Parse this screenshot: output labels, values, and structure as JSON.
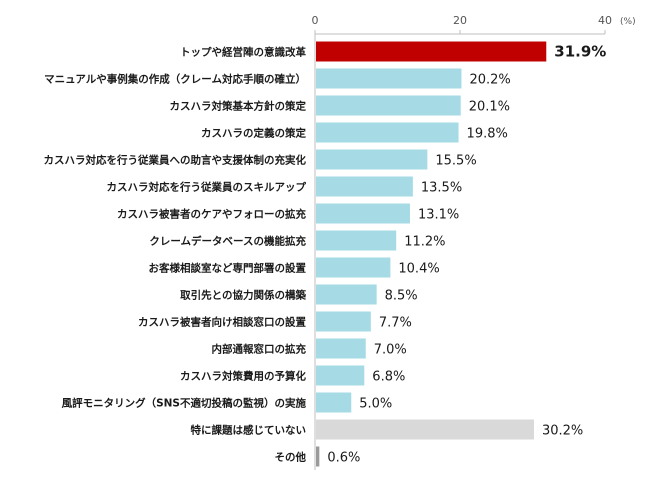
{
  "chart_data": {
    "type": "bar",
    "orientation": "horizontal",
    "title": "",
    "unit_label": "(%)",
    "xlim": [
      0,
      40
    ],
    "xticks": [
      "0",
      "20",
      "40"
    ],
    "grid": false,
    "categories": [
      "トップや経営陣の意識改革",
      "マニュアルや事例集の作成（クレーム対応手順の確立）",
      "カスハラ対策基本方針の策定",
      "カスハラの定義の策定",
      "カスハラ対応を行う従業員への助言や支援体制の充実化",
      "カスハラ対応を行う従業員のスキルアップ",
      "カスハラ被害者のケアやフォローの拡充",
      "クレームデータベースの機能拡充",
      "お客様相談室など専門部署の設置",
      "取引先との協力関係の構築",
      "カスハラ被害者向け相談窓口の設置",
      "内部通報窓口の拡充",
      "カスハラ対策費用の予算化",
      "風評モニタリング（SNS不適切投稿の監視）の実施",
      "特に課題は感じていない",
      "その他"
    ],
    "values": [
      31.9,
      20.2,
      20.1,
      19.8,
      15.5,
      13.5,
      13.1,
      11.2,
      10.4,
      8.5,
      7.7,
      7.0,
      6.8,
      5.0,
      30.2,
      0.6
    ],
    "value_labels": [
      "31.9%",
      "20.2%",
      "20.1%",
      "19.8%",
      "15.5%",
      "13.5%",
      "13.1%",
      "11.2%",
      "10.4%",
      "8.5%",
      "7.7%",
      "7.0%",
      "6.8%",
      "5.0%",
      "30.2%",
      "0.6%"
    ],
    "colors": {
      "highlight": "#c00000",
      "default": "#a6dbe6",
      "none": "#d9d9d9",
      "other": "#9a9a9a",
      "axis": "#bfbfbf"
    },
    "bar_colors": [
      "highlight",
      "default",
      "default",
      "default",
      "default",
      "default",
      "default",
      "default",
      "default",
      "default",
      "default",
      "default",
      "default",
      "default",
      "none",
      "other"
    ]
  }
}
